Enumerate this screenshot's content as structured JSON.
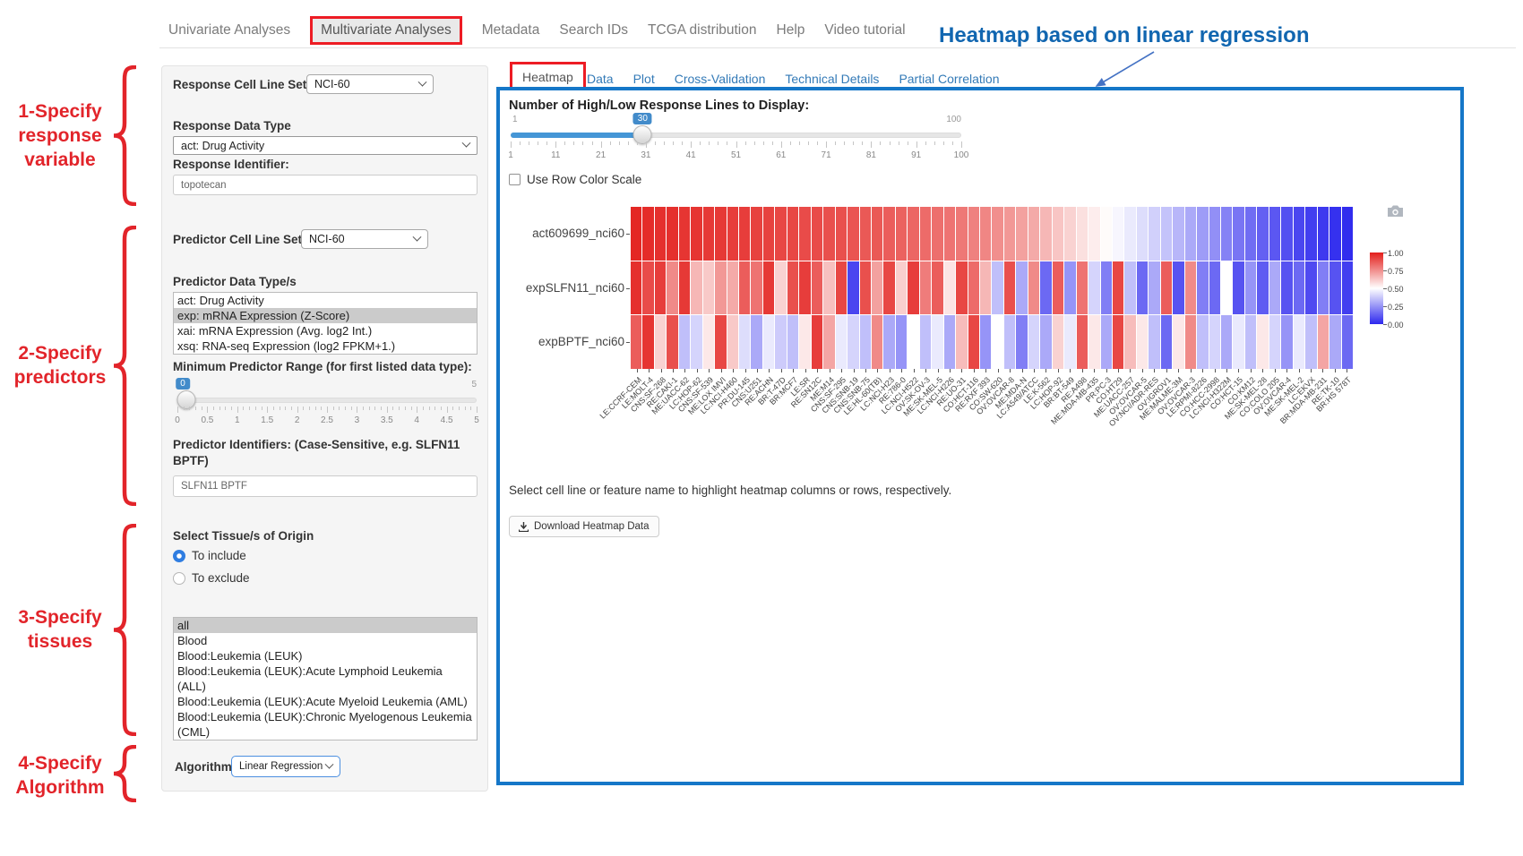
{
  "nav": {
    "items": [
      {
        "label": "Univariate Analyses",
        "active": false
      },
      {
        "label": "Multivariate Analyses",
        "active": true
      },
      {
        "label": "Metadata",
        "active": false
      },
      {
        "label": "Search IDs",
        "active": false
      },
      {
        "label": "TCGA distribution",
        "active": false
      },
      {
        "label": "Help",
        "active": false
      },
      {
        "label": "Video tutorial",
        "active": false
      }
    ]
  },
  "annotations": {
    "heading": "Heatmap based on linear regression",
    "steps": [
      {
        "lines": [
          "1-Specify",
          "response",
          "variable"
        ]
      },
      {
        "lines": [
          "2-Specify",
          "predictors"
        ]
      },
      {
        "lines": [
          "3-Specify",
          "tissues"
        ]
      },
      {
        "lines": [
          "4-Specify",
          "Algorithm"
        ]
      }
    ],
    "red_color": "#e2242a",
    "heading_color": "#1166b0"
  },
  "form": {
    "response_cell_line_set": {
      "label": "Response Cell Line Set",
      "value": "NCI-60"
    },
    "response_data_type": {
      "label": "Response Data Type",
      "value": "act: Drug Activity"
    },
    "response_identifier": {
      "label": "Response Identifier:",
      "value": "topotecan"
    },
    "predictor_cell_line_set": {
      "label": "Predictor Cell Line Set",
      "value": "NCI-60"
    },
    "predictor_data_types": {
      "label": "Predictor Data Type/s",
      "options": [
        "act: Drug Activity",
        "exp: mRNA Expression (Z-Score)",
        "xai: mRNA Expression (Avg. log2 Int.)",
        "xsq: RNA-seq Expression (log2 FPKM+1.)"
      ],
      "selected_index": 1
    },
    "min_predictor_range": {
      "label": "Minimum Predictor Range (for first listed data type):",
      "value": "0",
      "min": "0",
      "max": "5",
      "ticks": [
        "0",
        "0.5",
        "1",
        "1.5",
        "2",
        "2.5",
        "3",
        "3.5",
        "4",
        "4.5",
        "5"
      ]
    },
    "predictor_identifiers": {
      "label": "Predictor Identifiers: (Case-Sensitive, e.g. SLFN11 BPTF)",
      "value": "SLFN11 BPTF"
    },
    "tissue": {
      "label": "Select Tissue/s of Origin",
      "radios": [
        {
          "label": "To include",
          "checked": true
        },
        {
          "label": "To exclude",
          "checked": false
        }
      ],
      "options": [
        "all",
        "Blood",
        "Blood:Leukemia (LEUK)",
        "Blood:Leukemia (LEUK):Acute Lymphoid Leukemia (ALL)",
        "Blood:Leukemia (LEUK):Acute Myeloid Leukemia (AML)",
        "Blood:Leukemia (LEUK):Chronic Myelogenous Leukemia (CML)"
      ],
      "selected_index": 0
    },
    "algorithm": {
      "label": "Algorithm",
      "value": "Linear Regression"
    }
  },
  "tabs": [
    {
      "label": "Heatmap",
      "active": true
    },
    {
      "label": "Data",
      "active": false
    },
    {
      "label": "Plot",
      "active": false
    },
    {
      "label": "Cross-Validation",
      "active": false
    },
    {
      "label": "Technical Details",
      "active": false
    },
    {
      "label": "Partial Correlation",
      "active": false
    }
  ],
  "panel": {
    "slider": {
      "label": "Number of High/Low Response Lines to Display:",
      "min": "1",
      "max": "100",
      "value": "30",
      "ticks": [
        "1",
        "11",
        "21",
        "31",
        "41",
        "51",
        "61",
        "71",
        "81",
        "91",
        "100"
      ]
    },
    "row_color_checkbox": {
      "label": "Use Row Color Scale",
      "checked": false
    },
    "help_text": "Select cell line or feature name to highlight heatmap columns or rows, respectively.",
    "download_button": "Download Heatmap Data"
  },
  "chart_data": {
    "type": "heatmap",
    "rows": [
      "act609699_nci60",
      "expSLFN11_nci60",
      "expBPTF_nci60"
    ],
    "columns": [
      "LE:CCRF-CEM",
      "LE:MOLT-4",
      "CNS:SF-268",
      "RE:CAKI-1",
      "ME:UACC-62",
      "LC:HOP-62",
      "CNS:SF-539",
      "ME:LOX IMVI",
      "LC:NCI-H460",
      "PR:DU-145",
      "CNS:U251",
      "RE:ACHN",
      "BR:T-47D",
      "BR:MCF7",
      "LE:SR",
      "RE:SN12C",
      "ME:M14",
      "CNS:SF-295",
      "CNS:SNB-19",
      "CNS:SNB-75",
      "LE:HL-60(TB)",
      "LC:NCI-H23",
      "RE:786-0",
      "LC:NCI-H522",
      "OV:SK-OV-3",
      "ME:SK-MEL-5",
      "LC:NCI-H226",
      "RE:UO-31",
      "CO:HCT-116",
      "RE:RXF 393",
      "CO:SW-620",
      "OV:OVCAR-8",
      "ME:MDA-N",
      "LC:A549/ATCC",
      "LE:K-562",
      "LC:HOP-92",
      "BR:BT-549",
      "RE:A498",
      "ME:MDA-MB-435",
      "PR:PC-3",
      "CO:HT29",
      "ME:UACC-257",
      "OV:OVCAR-5",
      "OV:NCI/ADR-RES",
      "OV:IGROV1",
      "ME:MALME-3M",
      "OV:OVCAR-3",
      "LE:RPMI-8226",
      "CO:HCC-2998",
      "LC:NCI-H322M",
      "CO:HCT-15",
      "CO:KM12",
      "ME:SK-MEL-28",
      "CO:COLO 205",
      "OV:OVCAR-4",
      "ME:SK-MEL-2",
      "LC:EKVX",
      "BR:MDA-MB-231",
      "RE:TK-10",
      "BR:HS 578T"
    ],
    "values": [
      [
        0.98,
        0.97,
        0.96,
        0.96,
        0.95,
        0.95,
        0.94,
        0.94,
        0.93,
        0.93,
        0.92,
        0.92,
        0.91,
        0.91,
        0.9,
        0.9,
        0.89,
        0.89,
        0.88,
        0.87,
        0.87,
        0.86,
        0.85,
        0.84,
        0.83,
        0.82,
        0.81,
        0.8,
        0.78,
        0.77,
        0.75,
        0.73,
        0.71,
        0.69,
        0.66,
        0.63,
        0.6,
        0.57,
        0.54,
        0.51,
        0.48,
        0.45,
        0.42,
        0.39,
        0.36,
        0.33,
        0.3,
        0.27,
        0.24,
        0.21,
        0.18,
        0.16,
        0.13,
        0.11,
        0.09,
        0.07,
        0.05,
        0.04,
        0.02,
        0.01
      ],
      [
        0.96,
        0.9,
        0.93,
        0.76,
        0.94,
        0.66,
        0.62,
        0.73,
        0.69,
        0.86,
        0.81,
        0.94,
        0.6,
        0.89,
        0.93,
        0.86,
        0.64,
        0.91,
        0.07,
        0.89,
        0.71,
        0.91,
        0.61,
        0.93,
        0.79,
        0.86,
        0.56,
        0.91,
        0.83,
        0.66,
        0.35,
        0.89,
        0.3,
        0.76,
        0.15,
        0.86,
        0.25,
        0.81,
        0.4,
        0.2,
        0.91,
        0.35,
        0.15,
        0.3,
        0.86,
        0.1,
        0.76,
        0.2,
        0.15,
        0.5,
        0.1,
        0.25,
        0.12,
        0.3,
        0.1,
        0.15,
        0.08,
        0.2,
        0.1,
        0.05
      ],
      [
        0.86,
        0.95,
        0.6,
        0.89,
        0.35,
        0.4,
        0.55,
        0.91,
        0.62,
        0.42,
        0.3,
        0.45,
        0.38,
        0.35,
        0.55,
        0.93,
        0.7,
        0.45,
        0.4,
        0.35,
        0.76,
        0.3,
        0.25,
        0.5,
        0.35,
        0.45,
        0.3,
        0.65,
        0.91,
        0.25,
        0.5,
        0.35,
        0.2,
        0.4,
        0.3,
        0.6,
        0.45,
        0.86,
        0.55,
        0.3,
        0.91,
        0.65,
        0.55,
        0.35,
        0.15,
        0.55,
        0.76,
        0.35,
        0.4,
        0.3,
        0.45,
        0.35,
        0.55,
        0.4,
        0.25,
        0.45,
        0.35,
        0.7,
        0.3,
        0.15
      ]
    ],
    "colorscale": {
      "low": "#2d28ee",
      "mid": "#ffffff",
      "high": "#e31e1b"
    },
    "colorbar_ticks": [
      "1.00",
      "0.75",
      "0.50",
      "0.25",
      "0.00"
    ],
    "legend_position": "right",
    "grid": false
  }
}
